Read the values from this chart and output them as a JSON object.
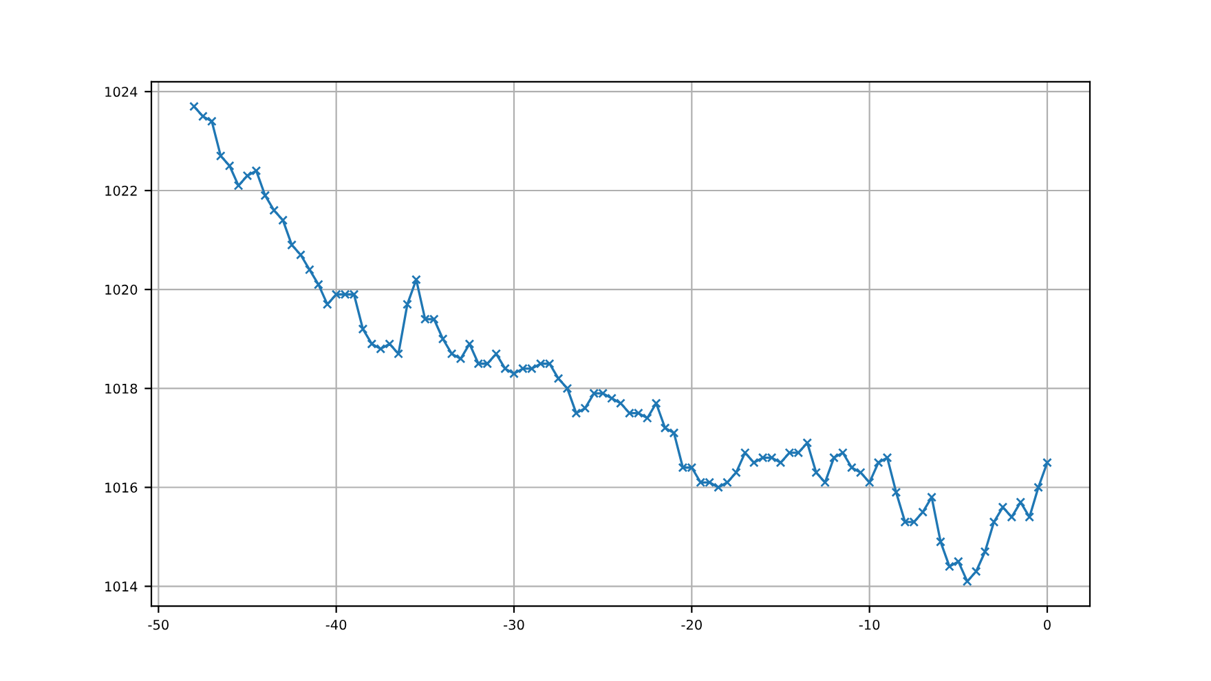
{
  "chart_data": {
    "type": "line",
    "x": [
      -48,
      -47.5,
      -47,
      -46.5,
      -46,
      -45.5,
      -45,
      -44.5,
      -44,
      -43.5,
      -43,
      -42.5,
      -42,
      -41.5,
      -41,
      -40.5,
      -40,
      -39.5,
      -39,
      -38.5,
      -38,
      -37.5,
      -37,
      -36.5,
      -36,
      -35.5,
      -35,
      -34.5,
      -34,
      -33.5,
      -33,
      -32.5,
      -32,
      -31.5,
      -31,
      -30.5,
      -30,
      -29.5,
      -29,
      -28.5,
      -28,
      -27.5,
      -27,
      -26.5,
      -26,
      -25.5,
      -25,
      -24.5,
      -24,
      -23.5,
      -23,
      -22.5,
      -22,
      -21.5,
      -21,
      -20.5,
      -20,
      -19.5,
      -19,
      -18.5,
      -18,
      -17.5,
      -17,
      -16.5,
      -16,
      -15.5,
      -15,
      -14.5,
      -14,
      -13.5,
      -13,
      -12.5,
      -12,
      -11.5,
      -11,
      -10.5,
      -10,
      -9.5,
      -9,
      -8.5,
      -8,
      -7.5,
      -7,
      -6.5,
      -6,
      -5.5,
      -5,
      -4.5,
      -4,
      -3.5,
      -3,
      -2.5,
      -2,
      -1.5,
      -1,
      -0.5,
      0
    ],
    "series": [
      {
        "color": "#1f77b4",
        "values": [
          1023.7,
          1023.5,
          1023.4,
          1022.7,
          1022.5,
          1022.1,
          1022.3,
          1022.4,
          1021.9,
          1021.6,
          1021.4,
          1020.9,
          1020.7,
          1020.4,
          1020.1,
          1019.7,
          1019.9,
          1019.9,
          1019.9,
          1019.2,
          1018.9,
          1018.8,
          1018.9,
          1018.7,
          1019.7,
          1020.2,
          1019.4,
          1019.4,
          1019.0,
          1018.7,
          1018.6,
          1018.9,
          1018.5,
          1018.5,
          1018.7,
          1018.4,
          1018.3,
          1018.4,
          1018.4,
          1018.5,
          1018.5,
          1018.2,
          1018.0,
          1017.5,
          1017.6,
          1017.9,
          1017.9,
          1017.8,
          1017.7,
          1017.5,
          1017.5,
          1017.4,
          1017.7,
          1017.2,
          1017.1,
          1016.4,
          1016.4,
          1016.1,
          1016.1,
          1016.0,
          1016.1,
          1016.3,
          1016.7,
          1016.5,
          1016.6,
          1016.6,
          1016.5,
          1016.7,
          1016.7,
          1016.9,
          1016.3,
          1016.1,
          1016.6,
          1016.7,
          1016.4,
          1016.3,
          1016.1,
          1016.5,
          1016.6,
          1015.9,
          1015.3,
          1015.3,
          1015.5,
          1015.8,
          1014.9,
          1014.4,
          1014.5,
          1014.1,
          1014.3,
          1014.7,
          1015.3,
          1015.6,
          1015.4,
          1015.7,
          1015.4,
          1016.0,
          1016.5
        ]
      }
    ],
    "xlim": [
      -50.4,
      2.4
    ],
    "ylim": [
      1013.6,
      1024.2
    ],
    "xticks": [
      -50,
      -40,
      -30,
      -20,
      -10,
      0
    ],
    "yticks": [
      1014,
      1016,
      1018,
      1020,
      1022,
      1024
    ],
    "grid": true,
    "marker": "cross",
    "line_style": "solid"
  }
}
